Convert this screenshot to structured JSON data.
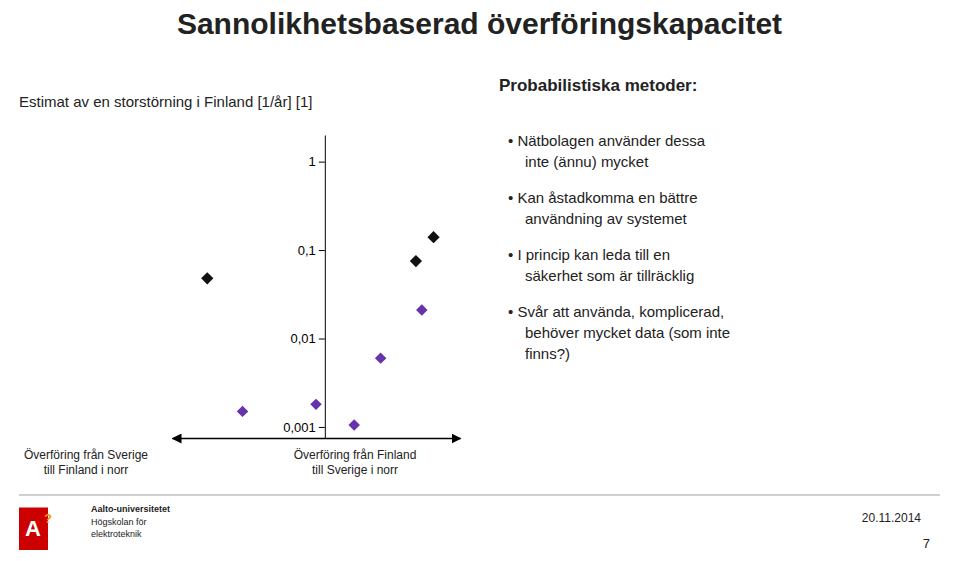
{
  "chart_data": {
    "type": "scatter",
    "title": "Sannolikhetsbaserad överföringskapacitet",
    "subtitle": "Estimat av en storstörning i Finland [1/år] [1]",
    "xlim": [
      -2.6,
      2.3
    ],
    "xticks": [],
    "ylim": [
      0.00075,
      2.0
    ],
    "yticks": [
      1,
      {
        "value": 0.1,
        "label": "0,1"
      },
      {
        "value": 0.01,
        "label": "0,01"
      },
      {
        "value": 0.001,
        "label": "0,001"
      }
    ],
    "log": "y",
    "tick_labels": "y",
    "series": [
      {
        "color": "#111111",
        "marker": "diamond",
        "x": [
          -2.0,
          1.55,
          1.85
        ],
        "values": [
          0.048,
          0.075,
          0.14
        ]
      },
      {
        "color": "#6633AA",
        "marker": "diamond",
        "x": [
          -1.4,
          -0.15,
          0.5,
          0.95,
          1.65
        ],
        "values": [
          0.0015,
          0.0018,
          0.00105,
          0.006,
          0.021
        ]
      }
    ],
    "annotations": [
      "Överföring från Sverige\ntill Finland i norr",
      "Överföring från Finland\ntill Sverige i norr",
      "Probabilistiska metoder:",
      "• Nätbolagen använder dessa\ninte (ännu) mycket",
      "• Kan åstadkomma en bättre\nanvändning av systemet",
      "• I princip kan leda till en\nsäkerhet som är tillräcklig",
      "• Svår att använda, komplicerad,\nbehöver mycket data (som inte\nfinns?)",
      "A",
      "?",
      "Aalto-universitetet",
      "Högskolan för",
      "elektroteknik",
      "20.11.2014",
      "7"
    ]
  }
}
